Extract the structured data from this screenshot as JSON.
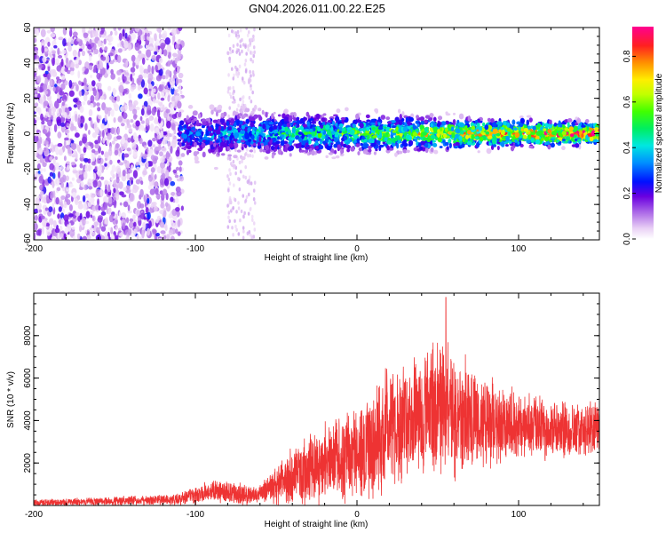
{
  "title": "GN04.2026.011.00.22.E25",
  "chart_data": [
    {
      "type": "heatmap",
      "name": "spectrogram",
      "xlabel": "Height of straight line (km)",
      "ylabel": "Frequency (Hz)",
      "xlim": [
        -200,
        150
      ],
      "ylim": [
        -60,
        60
      ],
      "xticks": [
        -200,
        -100,
        0,
        100
      ],
      "yticks": [
        60,
        40,
        20,
        0,
        -20,
        -40,
        -60
      ],
      "colorbar": {
        "label": "Normalized spectral amplitude",
        "range": [
          0.0,
          0.93
        ],
        "ticks": [
          0.0,
          0.2,
          0.4,
          0.6,
          0.8
        ]
      },
      "regions": [
        {
          "x": [
            -200,
            -108
          ],
          "freq_halfwidth": 60,
          "description": "broadband noise",
          "amplitude": 0.1
        },
        {
          "x": [
            -80,
            -63
          ],
          "freq_halfwidth": 60,
          "description": "faint noise band",
          "amplitude": 0.03
        },
        {
          "x": [
            -110,
            150
          ],
          "center_freq": 0,
          "description": "signal band",
          "amplitude_start": 0.3,
          "amplitude_end": 0.9
        }
      ]
    },
    {
      "type": "line",
      "name": "snr",
      "xlabel": "Height of straight line (km)",
      "ylabel": "SNR (10 * v/v)",
      "xlim": [
        -200,
        150
      ],
      "ylim": [
        0,
        10000
      ],
      "xticks": [
        -200,
        -100,
        0,
        100
      ],
      "yticks": [
        2000,
        4000,
        6000,
        8000
      ],
      "color": "#ee3333",
      "envelope": [
        {
          "x": -200,
          "mean": 120,
          "spread": 150
        },
        {
          "x": -150,
          "mean": 200,
          "spread": 200
        },
        {
          "x": -110,
          "mean": 280,
          "spread": 250
        },
        {
          "x": -90,
          "mean": 700,
          "spread": 500
        },
        {
          "x": -70,
          "mean": 500,
          "spread": 500
        },
        {
          "x": -60,
          "mean": 500,
          "spread": 400
        },
        {
          "x": -50,
          "mean": 1000,
          "spread": 900
        },
        {
          "x": -30,
          "mean": 1700,
          "spread": 1600
        },
        {
          "x": -10,
          "mean": 2300,
          "spread": 2000
        },
        {
          "x": 10,
          "mean": 2700,
          "spread": 2400
        },
        {
          "x": 20,
          "mean": 3800,
          "spread": 2800
        },
        {
          "x": 40,
          "mean": 4300,
          "spread": 2700
        },
        {
          "x": 55,
          "mean": 4500,
          "spread": 3000
        },
        {
          "x": 80,
          "mean": 3900,
          "spread": 2000
        },
        {
          "x": 100,
          "mean": 3700,
          "spread": 1500
        },
        {
          "x": 150,
          "mean": 3600,
          "spread": 1200
        }
      ],
      "peak": {
        "x": 55,
        "y": 9800
      }
    }
  ]
}
